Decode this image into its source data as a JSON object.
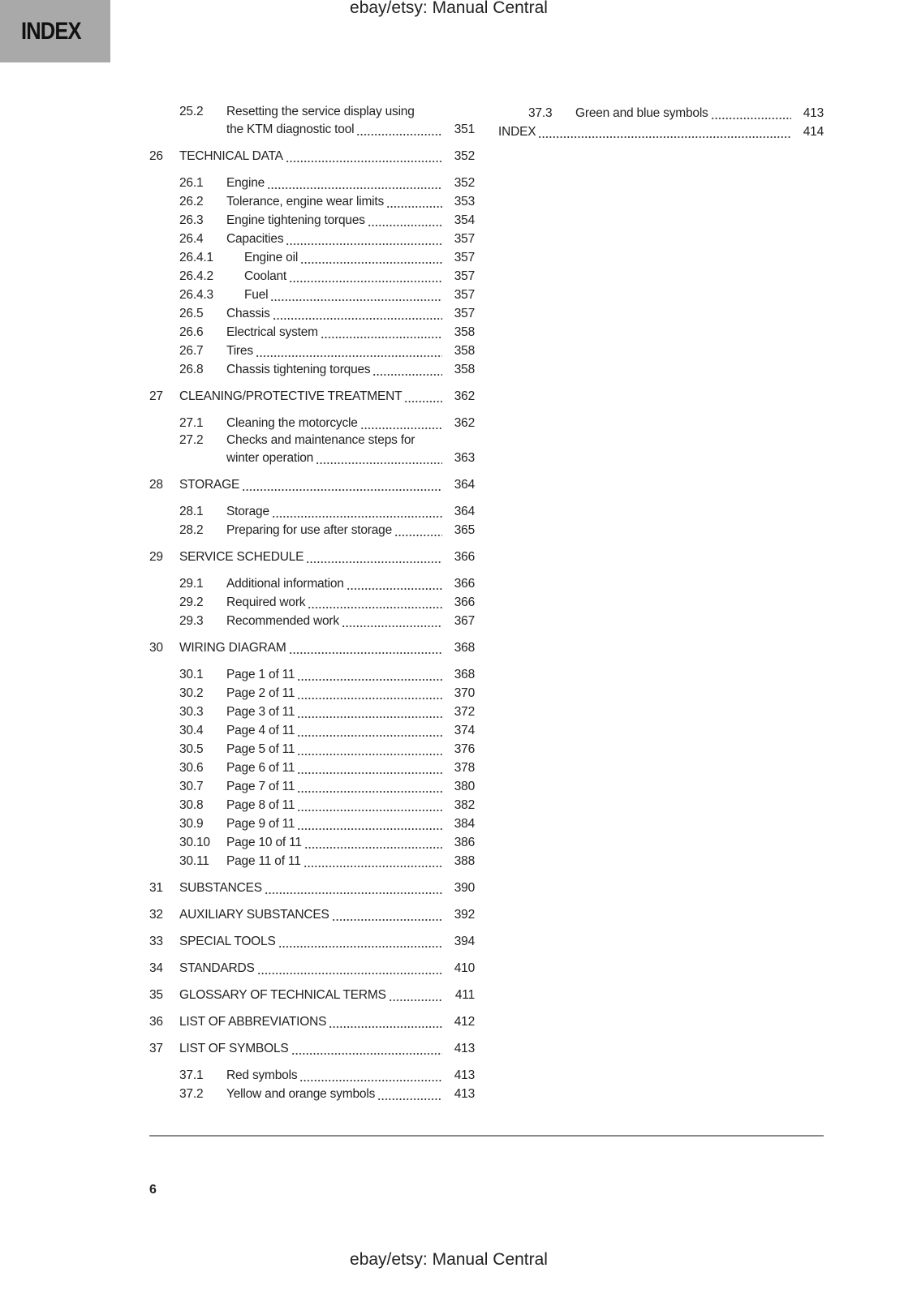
{
  "header": {
    "tab_label": "INDEX",
    "watermark_top": "ebay/etsy: Manual Central"
  },
  "footer": {
    "page_number": "6",
    "watermark_bottom": "ebay/etsy: Manual Central"
  },
  "toc": {
    "left": [
      {
        "level": 2,
        "num": "25.2",
        "title": "Resetting the service display using",
        "title_cont": "the KTM diagnostic tool",
        "page": "351"
      },
      {
        "level": 1,
        "num": "26",
        "title": "TECHNICAL DATA",
        "page": "352"
      },
      {
        "level": 2,
        "num": "26.1",
        "title": "Engine",
        "page": "352"
      },
      {
        "level": 2,
        "num": "26.2",
        "title": "Tolerance, engine wear limits",
        "page": "353"
      },
      {
        "level": 2,
        "num": "26.3",
        "title": "Engine tightening torques",
        "page": "354"
      },
      {
        "level": 2,
        "num": "26.4",
        "title": "Capacities",
        "page": "357"
      },
      {
        "level": 3,
        "num": "26.4.1",
        "title": "Engine oil",
        "page": "357"
      },
      {
        "level": 3,
        "num": "26.4.2",
        "title": "Coolant",
        "page": "357"
      },
      {
        "level": 3,
        "num": "26.4.3",
        "title": "Fuel",
        "page": "357"
      },
      {
        "level": 2,
        "num": "26.5",
        "title": "Chassis",
        "page": "357"
      },
      {
        "level": 2,
        "num": "26.6",
        "title": "Electrical system",
        "page": "358"
      },
      {
        "level": 2,
        "num": "26.7",
        "title": "Tires",
        "page": "358"
      },
      {
        "level": 2,
        "num": "26.8",
        "title": "Chassis tightening torques",
        "page": "358"
      },
      {
        "level": 1,
        "num": "27",
        "title": "CLEANING/PROTECTIVE TREATMENT",
        "page": "362"
      },
      {
        "level": 2,
        "num": "27.1",
        "title": "Cleaning the motorcycle",
        "page": "362"
      },
      {
        "level": 2,
        "num": "27.2",
        "title": "Checks and maintenance steps for",
        "title_cont": "winter operation",
        "page": "363"
      },
      {
        "level": 1,
        "num": "28",
        "title": "STORAGE",
        "page": "364"
      },
      {
        "level": 2,
        "num": "28.1",
        "title": "Storage",
        "page": "364"
      },
      {
        "level": 2,
        "num": "28.2",
        "title": "Preparing for use after storage",
        "page": "365"
      },
      {
        "level": 1,
        "num": "29",
        "title": "SERVICE SCHEDULE",
        "page": "366"
      },
      {
        "level": 2,
        "num": "29.1",
        "title": "Additional information",
        "page": "366"
      },
      {
        "level": 2,
        "num": "29.2",
        "title": "Required work",
        "page": "366"
      },
      {
        "level": 2,
        "num": "29.3",
        "title": "Recommended work",
        "page": "367"
      },
      {
        "level": 1,
        "num": "30",
        "title": "WIRING DIAGRAM",
        "page": "368"
      },
      {
        "level": 2,
        "num": "30.1",
        "title": "Page 1 of 11",
        "page": "368"
      },
      {
        "level": 2,
        "num": "30.2",
        "title": "Page 2 of 11",
        "page": "370"
      },
      {
        "level": 2,
        "num": "30.3",
        "title": "Page 3 of 11",
        "page": "372"
      },
      {
        "level": 2,
        "num": "30.4",
        "title": "Page 4 of 11",
        "page": "374"
      },
      {
        "level": 2,
        "num": "30.5",
        "title": "Page 5 of 11",
        "page": "376"
      },
      {
        "level": 2,
        "num": "30.6",
        "title": "Page 6 of 11",
        "page": "378"
      },
      {
        "level": 2,
        "num": "30.7",
        "title": "Page 7 of 11",
        "page": "380"
      },
      {
        "level": 2,
        "num": "30.8",
        "title": "Page 8 of 11",
        "page": "382"
      },
      {
        "level": 2,
        "num": "30.9",
        "title": "Page 9 of 11",
        "page": "384"
      },
      {
        "level": 2,
        "num": "30.10",
        "title": "Page 10 of 11",
        "page": "386"
      },
      {
        "level": 2,
        "num": "30.11",
        "title": "Page 11 of 11",
        "page": "388"
      },
      {
        "level": 1,
        "num": "31",
        "title": "SUBSTANCES",
        "page": "390"
      },
      {
        "level": 1,
        "num": "32",
        "title": "AUXILIARY SUBSTANCES",
        "page": "392"
      },
      {
        "level": 1,
        "num": "33",
        "title": "SPECIAL TOOLS",
        "page": "394"
      },
      {
        "level": 1,
        "num": "34",
        "title": "STANDARDS",
        "page": "410"
      },
      {
        "level": 1,
        "num": "35",
        "title": "GLOSSARY OF TECHNICAL TERMS",
        "page": "411"
      },
      {
        "level": 1,
        "num": "36",
        "title": "LIST OF ABBREVIATIONS",
        "page": "412"
      },
      {
        "level": 1,
        "num": "37",
        "title": "LIST OF SYMBOLS",
        "page": "413"
      },
      {
        "level": 2,
        "num": "37.1",
        "title": "Red symbols",
        "page": "413"
      },
      {
        "level": 2,
        "num": "37.2",
        "title": "Yellow and orange symbols",
        "page": "413"
      }
    ],
    "right": [
      {
        "level": 2,
        "num": "37.3",
        "title": "Green and blue symbols",
        "page": "413"
      },
      {
        "level": 0,
        "num": "",
        "title": "INDEX",
        "page": "414"
      }
    ]
  }
}
